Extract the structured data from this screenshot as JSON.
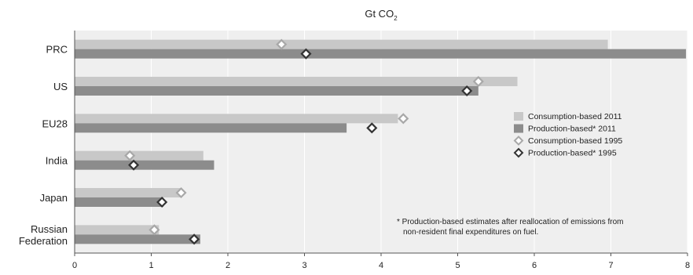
{
  "chart_data": {
    "type": "bar",
    "orientation": "horizontal",
    "title": {
      "main": "Gt CO",
      "subscript": "2"
    },
    "categories": [
      [
        "PRC"
      ],
      [
        "US"
      ],
      [
        "EU28"
      ],
      [
        "India"
      ],
      [
        "Japan"
      ],
      [
        "Russian",
        "Federation"
      ]
    ],
    "series": [
      {
        "name": "Consumption-based 2011",
        "kind": "bar",
        "color": "#c8c8c8",
        "values": [
          6.96,
          5.78,
          4.22,
          1.68,
          1.38,
          1.1
        ]
      },
      {
        "name": "Production-based* 2011",
        "kind": "bar",
        "color": "#8c8c8c",
        "values": [
          7.98,
          5.27,
          3.55,
          1.82,
          1.16,
          1.64
        ]
      },
      {
        "name": "Consumption-based 1995",
        "kind": "marker",
        "marker": "diamond-open",
        "color": "#a8a8a8",
        "values": [
          2.7,
          5.27,
          4.29,
          0.72,
          1.39,
          1.04
        ]
      },
      {
        "name": "Production-based* 1995",
        "kind": "marker",
        "marker": "diamond-open",
        "color": "#333333",
        "values": [
          3.02,
          5.12,
          3.88,
          0.77,
          1.14,
          1.56
        ]
      }
    ],
    "xlim": [
      0,
      8
    ],
    "xticks": [
      0,
      1,
      2,
      3,
      4,
      5,
      6,
      7,
      8
    ],
    "grid": "vertical",
    "legend_position": "right",
    "note": [
      "* Production-based estimates after reallocation of emissions from",
      "non-resident final expenditures on fuel."
    ]
  },
  "colors": {
    "plot_background": "#efefef",
    "gridline": "#ffffff",
    "axis": "#555555"
  }
}
